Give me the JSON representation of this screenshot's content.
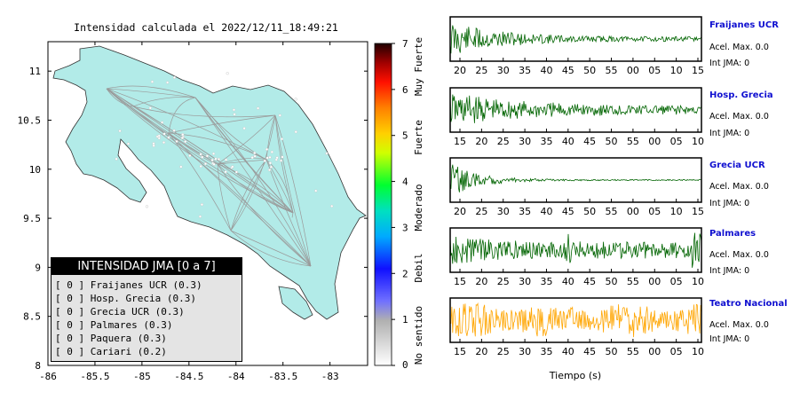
{
  "map": {
    "title": "Intensidad calculada el 2022/12/11_18:49:21",
    "x_ticks": [
      "-86",
      "-85.5",
      "-85",
      "-84.5",
      "-84",
      "-83.5",
      "-83"
    ],
    "y_ticks": [
      "11",
      "10.5",
      "10",
      "9.5",
      "9",
      "8.5",
      "8"
    ],
    "xlim": [
      -86,
      -82.6
    ],
    "ylim": [
      8,
      11.3
    ]
  },
  "colorbar": {
    "ticks": [
      "7",
      "6",
      "5",
      "4",
      "3",
      "2",
      "1",
      "0"
    ],
    "scale_range": [
      0,
      7
    ],
    "categories": [
      "Muy Fuerte",
      "Fuerte",
      "Moderado",
      "Debil",
      "No sentido"
    ]
  },
  "legend": {
    "header": "INTENSIDAD JMA [0 a 7]",
    "rows": [
      "[ 0 ] Fraijanes UCR (0.3)",
      "[ 0 ] Hosp. Grecia (0.3)",
      "[ 0 ] Grecia UCR (0.3)",
      "[ 0 ] Palmares (0.3)",
      "[ 0 ] Paquera (0.3)",
      "[ 0 ] Cariari (0.2)"
    ]
  },
  "stations": [
    {
      "name": "Fraijanes UCR",
      "accel": "Acel. Max. 0.0",
      "jma": "Int JMA: 0",
      "ticks": [
        "20",
        "25",
        "30",
        "35",
        "40",
        "45",
        "50",
        "55",
        "00",
        "05",
        "10",
        "15"
      ],
      "color": "#006400",
      "profile": "decay"
    },
    {
      "name": "Hosp. Grecia",
      "accel": "Acel. Max. 0.0",
      "jma": "Int JMA: 0",
      "ticks": [
        "15",
        "20",
        "25",
        "30",
        "35",
        "40",
        "45",
        "50",
        "55",
        "00",
        "05",
        "10"
      ],
      "color": "#006400",
      "profile": "decay2"
    },
    {
      "name": "Grecia UCR",
      "accel": "Acel. Max. 0.0",
      "jma": "Int JMA: 0",
      "ticks": [
        "20",
        "25",
        "30",
        "35",
        "40",
        "45",
        "50",
        "55",
        "00",
        "05",
        "10",
        "15"
      ],
      "color": "#006400",
      "profile": "fastdecay"
    },
    {
      "name": "Palmares",
      "accel": "Acel. Max. 0.0",
      "jma": "Int JMA: 0",
      "ticks": [
        "15",
        "20",
        "25",
        "30",
        "35",
        "40",
        "45",
        "50",
        "55",
        "00",
        "05",
        "10"
      ],
      "color": "#006400",
      "profile": "noisy"
    },
    {
      "name": "Teatro Nacional",
      "accel": "Acel. Max. 0.0",
      "jma": "Int JMA: 0",
      "ticks": [
        "15",
        "20",
        "25",
        "30",
        "35",
        "40",
        "45",
        "50",
        "55",
        "00",
        "05",
        "10"
      ],
      "color": "#ffa500",
      "profile": "uniform"
    }
  ],
  "time_axis_label": "Tiempo (s)"
}
